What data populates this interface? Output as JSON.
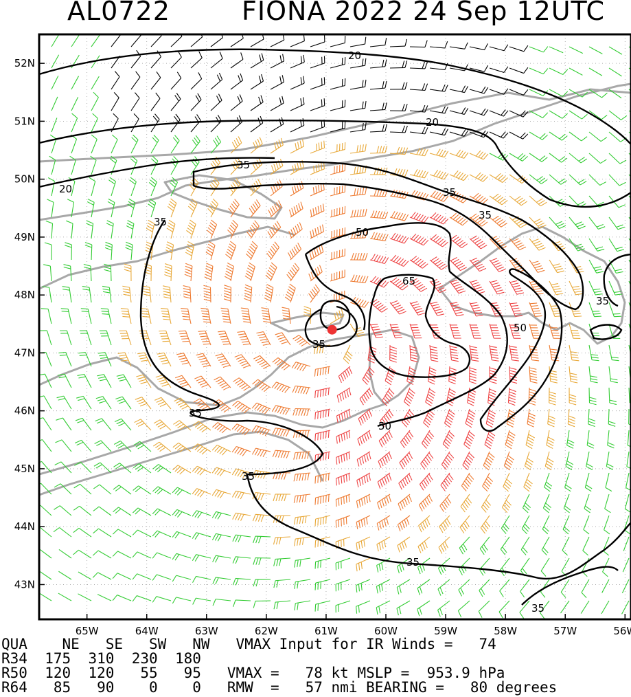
{
  "header": {
    "storm_id": "AL0722",
    "storm_title": "FIONA 2022 24 Sep 12UTC"
  },
  "map": {
    "lat_labels": [
      "52N",
      "51N",
      "50N",
      "49N",
      "48N",
      "47N",
      "46N",
      "45N",
      "44N",
      "43N"
    ],
    "lat_values": [
      52,
      51,
      50,
      49,
      48,
      47,
      46,
      45,
      44,
      43
    ],
    "lon_labels": [
      "65W",
      "64W",
      "63W",
      "62W",
      "61W",
      "60W",
      "59W",
      "58W",
      "57W",
      "56W"
    ],
    "lon_values": [
      -65,
      -64,
      -63,
      -62,
      -61,
      -60,
      -59,
      -58,
      -57,
      -56
    ],
    "lat_range": [
      42.4,
      52.5
    ],
    "lon_range": [
      -65.8,
      -55.9
    ],
    "center": {
      "lat": 47.4,
      "lon": -60.9
    },
    "contour_labels": {
      "c20_a": "20",
      "c20_b": "20",
      "c20_c": "20",
      "c35_a": "35",
      "c35_b": "35",
      "c35_c": "35",
      "c35_d": "35",
      "c35_e": "35",
      "c35_f": "35",
      "c35_g": "35",
      "c35_h": "35",
      "c50_a": "50",
      "c50_b": "50",
      "c50_c": "50",
      "c65_a": "65"
    },
    "colors": {
      "below_34kt": "#33cc33",
      "calm": "#000000",
      "34_to_49kt": "#e8a838",
      "50_to_63kt": "#ee7a30",
      "64kt_plus": "#ee4444",
      "coast": "#a8a8a8",
      "center_marker": "#ee3333"
    }
  },
  "table": {
    "header": [
      "QUA",
      "NE",
      "SE",
      "SW",
      "NW"
    ],
    "rows": [
      {
        "label": "R34",
        "values": [
          "175",
          "310",
          "230",
          "180"
        ]
      },
      {
        "label": "R50",
        "values": [
          "120",
          "120",
          "55",
          "95"
        ]
      },
      {
        "label": "R64",
        "values": [
          "85",
          "90",
          "0",
          "0"
        ]
      }
    ]
  },
  "summary": {
    "line1": "VMAX Input for IR Winds =   74",
    "line2": "VMAX =   78 kt MSLP =  953.9 hPa",
    "line3": "RMW  =   57 nmi BEARING =   80 degrees"
  }
}
